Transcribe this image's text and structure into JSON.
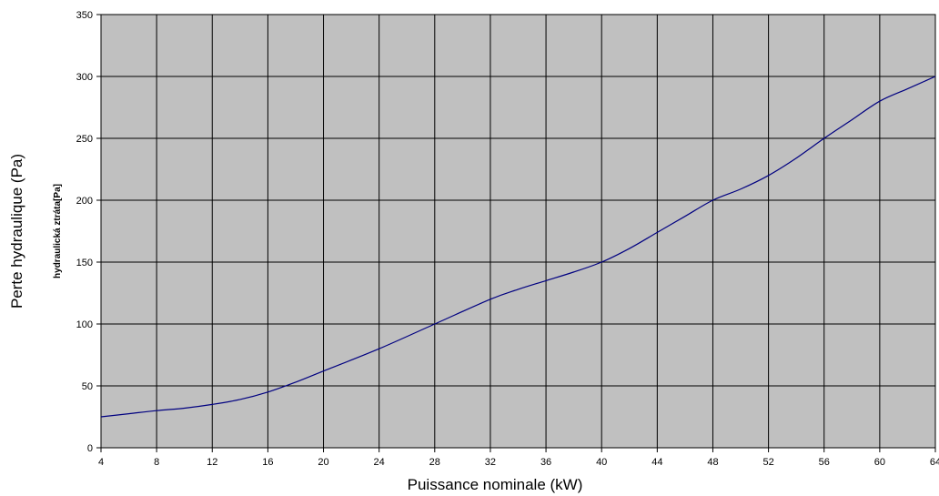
{
  "chart_data": {
    "type": "line",
    "xlabel": "Puissance nominale (kW)",
    "ylabel": "Perte hydraulique (Pa)",
    "ylabel_secondary": "hydraulická ztráta[Pa]",
    "xlim": [
      4,
      64
    ],
    "ylim": [
      0,
      350
    ],
    "x_ticks": [
      4,
      8,
      12,
      16,
      20,
      24,
      28,
      32,
      36,
      40,
      44,
      48,
      52,
      56,
      60,
      64
    ],
    "y_ticks": [
      0,
      50,
      100,
      150,
      200,
      250,
      300,
      350
    ],
    "grid": true,
    "legend": "none",
    "colors": {
      "plot_background": "#c0c0c0",
      "grid": "#000000",
      "line": "#000080"
    },
    "series": [
      {
        "x": [
          4,
          6,
          8,
          10,
          12,
          14,
          16,
          18,
          20,
          24,
          28,
          32,
          34,
          36,
          38,
          40,
          42,
          44,
          46,
          48,
          50,
          52,
          54,
          56,
          58,
          60,
          62,
          64
        ],
        "values": [
          25,
          27.5,
          30,
          32,
          35,
          39,
          45,
          53,
          62,
          80,
          100,
          120,
          128,
          135,
          142,
          150,
          161,
          174,
          187,
          200,
          209,
          220,
          234,
          250,
          265,
          280,
          290,
          300
        ]
      }
    ]
  }
}
